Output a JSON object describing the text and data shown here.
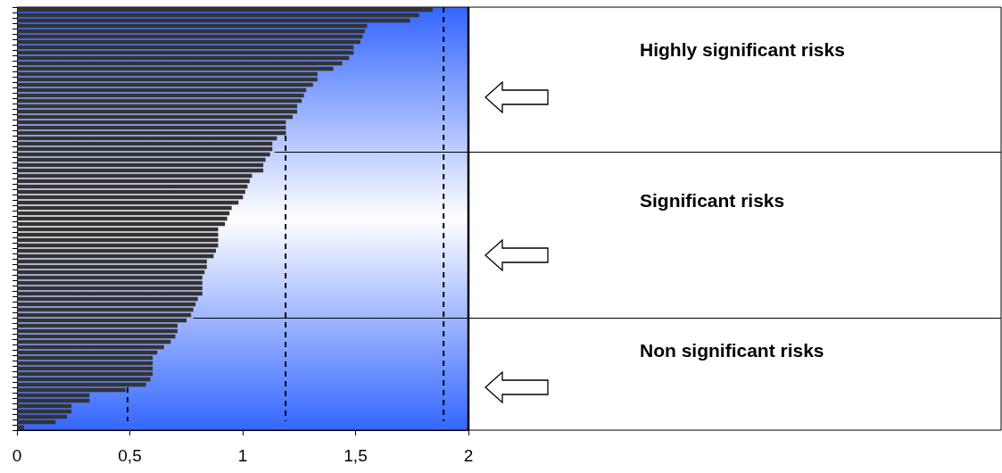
{
  "chart_data": {
    "type": "bar",
    "orientation": "horizontal",
    "categories": [
      null,
      null,
      null,
      null,
      null,
      null,
      null,
      null,
      null,
      null,
      null,
      null,
      null,
      null,
      null,
      null,
      null,
      null,
      null,
      null,
      null,
      null,
      null,
      null,
      null,
      null,
      null,
      null,
      null,
      null,
      null,
      null,
      null,
      null,
      null,
      null,
      null,
      null,
      null,
      null,
      null,
      null,
      null,
      null,
      null,
      null,
      null,
      null,
      null,
      null,
      null,
      null,
      null,
      null,
      null,
      null,
      null,
      null,
      null,
      null,
      null,
      null,
      null,
      null,
      null,
      null,
      null,
      null,
      null,
      null,
      null,
      null,
      null,
      null,
      null,
      null,
      null,
      null,
      null
    ],
    "values": [
      1.84,
      1.78,
      1.74,
      1.55,
      1.54,
      1.53,
      1.52,
      1.49,
      1.49,
      1.47,
      1.44,
      1.4,
      1.33,
      1.33,
      1.31,
      1.28,
      1.27,
      1.26,
      1.24,
      1.24,
      1.22,
      1.19,
      1.19,
      1.19,
      1.15,
      1.13,
      1.13,
      1.12,
      1.1,
      1.09,
      1.09,
      1.04,
      1.03,
      1.02,
      1.01,
      1.0,
      0.98,
      0.95,
      0.94,
      0.93,
      0.92,
      0.89,
      0.89,
      0.89,
      0.89,
      0.88,
      0.87,
      0.84,
      0.84,
      0.83,
      0.82,
      0.82,
      0.82,
      0.82,
      0.8,
      0.79,
      0.78,
      0.77,
      0.75,
      0.71,
      0.71,
      0.7,
      0.68,
      0.65,
      0.62,
      0.6,
      0.6,
      0.6,
      0.6,
      0.59,
      0.57,
      0.48,
      0.32,
      0.32,
      0.24,
      0.24,
      0.22,
      0.17,
      0.03
    ],
    "color": "#333333",
    "xlim": [
      0,
      2
    ],
    "xticks": [
      0,
      {
        "value": 0.5,
        "label": "0,5"
      },
      1,
      {
        "value": 1.5,
        "label": "1,5"
      },
      2
    ],
    "ref_lines": [
      {
        "axis": "x",
        "value": 0.49,
        "color": "#000000",
        "line_style": "dashed"
      },
      {
        "axis": "x",
        "value": 1.19,
        "color": "#000000",
        "line_style": "dashed"
      },
      {
        "axis": "x",
        "value": 1.89,
        "color": "#000000",
        "line_style": "dashed"
      }
    ],
    "annotations": [
      "Highly significant risks",
      "Significant risks",
      "Non significant risks"
    ],
    "grid": false,
    "legend": false,
    "tick_labels": "x"
  }
}
